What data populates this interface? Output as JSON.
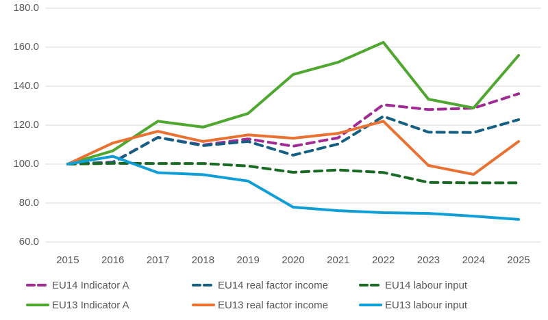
{
  "chart_data": {
    "type": "line",
    "title": "",
    "xlabel": "",
    "ylabel": "",
    "ylim": [
      60,
      180
    ],
    "yticks": [
      "60.0",
      "80.0",
      "100.0",
      "120.0",
      "140.0",
      "160.0",
      "180.0"
    ],
    "ytick_values": [
      60,
      80,
      100,
      120,
      140,
      160,
      180
    ],
    "grid": true,
    "legend_position": "bottom",
    "categories": [
      "2015",
      "2016",
      "2017",
      "2018",
      "2019",
      "2020",
      "2021",
      "2022",
      "2023",
      "2024",
      "2025"
    ],
    "series": [
      {
        "name": "EU14 Indicator A",
        "color": "#A02B93",
        "dashed": true,
        "values": [
          100.0,
          101.0,
          113.7,
          109.8,
          112.9,
          109.2,
          113.5,
          130.5,
          128.0,
          128.7,
          136.1
        ]
      },
      {
        "name": "EU14 real factor income",
        "color": "#156082",
        "dashed": true,
        "values": [
          100.0,
          100.8,
          113.7,
          109.5,
          111.6,
          104.6,
          110.3,
          124.5,
          116.4,
          116.2,
          122.8
        ]
      },
      {
        "name": "EU14 labour input",
        "color": "#196B24",
        "dashed": true,
        "values": [
          100.0,
          100.4,
          100.3,
          100.3,
          99.0,
          95.8,
          97.0,
          95.7,
          90.6,
          90.4,
          90.4
        ]
      },
      {
        "name": "EU13 Indicator A",
        "color": "#4EA72E",
        "dashed": false,
        "values": [
          100.0,
          106.8,
          122.0,
          119.0,
          126.0,
          146.0,
          152.3,
          162.5,
          133.3,
          128.8,
          155.8
        ]
      },
      {
        "name": "EU13 real factor income",
        "color": "#E97132",
        "dashed": false,
        "values": [
          100.0,
          110.8,
          116.8,
          111.6,
          115.0,
          113.3,
          115.8,
          122.0,
          99.3,
          94.7,
          111.6
        ]
      },
      {
        "name": "EU13 labour input",
        "color": "#0F9ED5",
        "dashed": false,
        "values": [
          100.0,
          104.0,
          95.6,
          94.6,
          91.3,
          77.9,
          76.1,
          75.1,
          74.7,
          73.3,
          71.6
        ]
      }
    ]
  }
}
